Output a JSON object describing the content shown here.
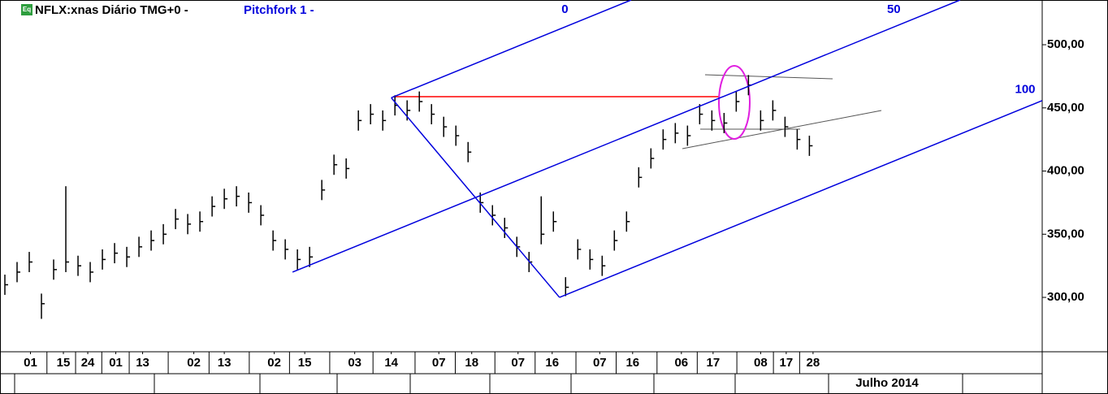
{
  "chart_data": {
    "type": "ohlc",
    "title": "NFLX:xnas Diário TMG+0 -",
    "badge": "Eq",
    "annotation_title": "Pitchfork 1 -",
    "color": "#000000",
    "xlim": [
      0,
      85.5
    ],
    "ylim": [
      257.6,
      535.4
    ],
    "yticks": [
      {
        "value": 300,
        "label": "300,00"
      },
      {
        "value": 350,
        "label": "350,00"
      },
      {
        "value": 400,
        "label": "400,00"
      },
      {
        "value": 450,
        "label": "450,00"
      },
      {
        "value": 500,
        "label": "500,00"
      }
    ],
    "xticks": [
      {
        "value": 2.5,
        "label": "01"
      },
      {
        "value": 5.2,
        "label": "15"
      },
      {
        "value": 7.2,
        "label": "24"
      },
      {
        "value": 9.5,
        "label": "01"
      },
      {
        "value": 11.7,
        "label": "13"
      },
      {
        "value": 15.9,
        "label": "02"
      },
      {
        "value": 18.4,
        "label": "13"
      },
      {
        "value": 22.5,
        "label": "02"
      },
      {
        "value": 25,
        "label": "15"
      },
      {
        "value": 29.1,
        "label": "03"
      },
      {
        "value": 32.1,
        "label": "14"
      },
      {
        "value": 36,
        "label": "07"
      },
      {
        "value": 38.7,
        "label": "18"
      },
      {
        "value": 42.5,
        "label": "07"
      },
      {
        "value": 45.3,
        "label": "16"
      },
      {
        "value": 49.2,
        "label": "07"
      },
      {
        "value": 51.9,
        "label": "16"
      },
      {
        "value": 55.9,
        "label": "06"
      },
      {
        "value": 58.5,
        "label": "17"
      },
      {
        "value": 62.4,
        "label": "08"
      },
      {
        "value": 64.5,
        "label": "17"
      },
      {
        "value": 66.7,
        "label": "28"
      }
    ],
    "period_label": "Julho 2014",
    "high": [
      318,
      328,
      336,
      303,
      330,
      388,
      333,
      328,
      338,
      343,
      340,
      348,
      353,
      358,
      370,
      366,
      368,
      380,
      386,
      388,
      383,
      373,
      353,
      346,
      338,
      340,
      393,
      413,
      410,
      448,
      453,
      448,
      460,
      456,
      463,
      453,
      443,
      436,
      423,
      383,
      373,
      363,
      348,
      336,
      380,
      368,
      316,
      346,
      338,
      333,
      353,
      368,
      403,
      418,
      433,
      438,
      436,
      453,
      448,
      446,
      463,
      476,
      448,
      456,
      443,
      433,
      428
    ],
    "low": [
      302,
      312,
      320,
      283,
      314,
      320,
      317,
      312,
      322,
      327,
      324,
      332,
      337,
      342,
      354,
      350,
      352,
      364,
      370,
      372,
      367,
      357,
      337,
      330,
      322,
      324,
      377,
      397,
      394,
      432,
      437,
      432,
      444,
      440,
      447,
      437,
      427,
      420,
      407,
      367,
      357,
      347,
      332,
      320,
      342,
      352,
      301,
      330,
      322,
      317,
      337,
      352,
      387,
      402,
      417,
      422,
      420,
      437,
      432,
      430,
      447,
      460,
      432,
      440,
      427,
      417,
      412
    ],
    "close": [
      310,
      320,
      328,
      295,
      322,
      328,
      325,
      320,
      330,
      335,
      332,
      340,
      345,
      350,
      362,
      358,
      360,
      372,
      378,
      380,
      375,
      365,
      345,
      338,
      330,
      332,
      385,
      405,
      402,
      440,
      445,
      440,
      452,
      448,
      455,
      445,
      435,
      428,
      415,
      375,
      365,
      355,
      340,
      328,
      350,
      360,
      308,
      338,
      330,
      325,
      345,
      360,
      395,
      410,
      425,
      430,
      428,
      445,
      440,
      438,
      455,
      468,
      440,
      448,
      435,
      425,
      420
    ],
    "pitchfork": {
      "color": "#0000dd",
      "points": [
        [
          24,
          320
        ],
        [
          32.1,
          458
        ],
        [
          45.9,
          300
        ]
      ],
      "levels": [
        0,
        50,
        100
      ]
    }
  }
}
